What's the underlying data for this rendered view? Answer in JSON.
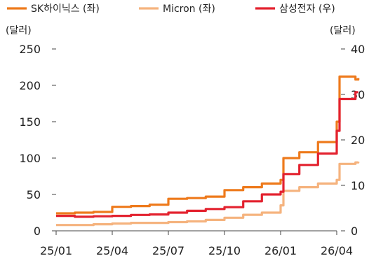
{
  "chart_data": {
    "type": "line",
    "title": "",
    "xlabel": "",
    "legend_position": "top",
    "x_ticks": [
      "25/01",
      "25/04",
      "25/07",
      "25/10",
      "26/01",
      "26/04"
    ],
    "y_left": {
      "unit": "(달러)",
      "ticks": [
        0,
        50,
        100,
        150,
        200,
        250
      ],
      "range": [
        0,
        250
      ]
    },
    "y_right": {
      "unit": "(달러)",
      "ticks": [
        0,
        10,
        20,
        30,
        40
      ],
      "range": [
        0,
        40
      ]
    },
    "series": [
      {
        "name": "SK하이닉스 (좌)",
        "axis": "left",
        "color": "#EE7A1C",
        "points": [
          [
            "25/01",
            24
          ],
          [
            "25/02",
            25
          ],
          [
            "25/03",
            26
          ],
          [
            "25/04",
            33
          ],
          [
            "25/05",
            34
          ],
          [
            "25/06",
            36
          ],
          [
            "25/07",
            44
          ],
          [
            "25/08",
            45
          ],
          [
            "25/09",
            47
          ],
          [
            "25/10",
            56
          ],
          [
            "25/11",
            60
          ],
          [
            "25/12",
            65
          ],
          [
            "26/01",
            70
          ],
          [
            "26/01b",
            100
          ],
          [
            "26/02",
            108
          ],
          [
            "26/03",
            122
          ],
          [
            "26/04",
            150
          ],
          [
            "26/04b",
            212
          ],
          [
            "26/05",
            208
          ],
          [
            "26/05b",
            210
          ]
        ]
      },
      {
        "name": "Micron (좌)",
        "axis": "left",
        "color": "#F5B37E",
        "points": [
          [
            "25/01",
            8
          ],
          [
            "25/02",
            8
          ],
          [
            "25/03",
            9
          ],
          [
            "25/04",
            10
          ],
          [
            "25/05",
            11
          ],
          [
            "25/06",
            11
          ],
          [
            "25/07",
            12
          ],
          [
            "25/08",
            13
          ],
          [
            "25/09",
            15
          ],
          [
            "25/10",
            18
          ],
          [
            "25/11",
            22
          ],
          [
            "25/12",
            25
          ],
          [
            "26/01",
            35
          ],
          [
            "26/01b",
            55
          ],
          [
            "26/02",
            60
          ],
          [
            "26/03",
            65
          ],
          [
            "26/04",
            70
          ],
          [
            "26/04b",
            92
          ],
          [
            "26/05",
            94
          ],
          [
            "26/05b",
            95
          ]
        ]
      },
      {
        "name": "삼성전자 (우)",
        "axis": "right",
        "color": "#E3222F",
        "points": [
          [
            "25/01",
            3.3
          ],
          [
            "25/02",
            3.1
          ],
          [
            "25/03",
            3.2
          ],
          [
            "25/04",
            3.3
          ],
          [
            "25/05",
            3.5
          ],
          [
            "25/06",
            3.6
          ],
          [
            "25/07",
            4.0
          ],
          [
            "25/08",
            4.4
          ],
          [
            "25/09",
            4.8
          ],
          [
            "25/10",
            5.2
          ],
          [
            "25/11",
            6.5
          ],
          [
            "25/12",
            8.0
          ],
          [
            "26/01",
            8.6
          ],
          [
            "26/01b",
            12.5
          ],
          [
            "26/02",
            14.5
          ],
          [
            "26/03",
            17.0
          ],
          [
            "26/04",
            22.0
          ],
          [
            "26/04b",
            29.0
          ],
          [
            "26/05",
            30.5
          ],
          [
            "26/05b",
            30.5
          ]
        ]
      }
    ]
  }
}
